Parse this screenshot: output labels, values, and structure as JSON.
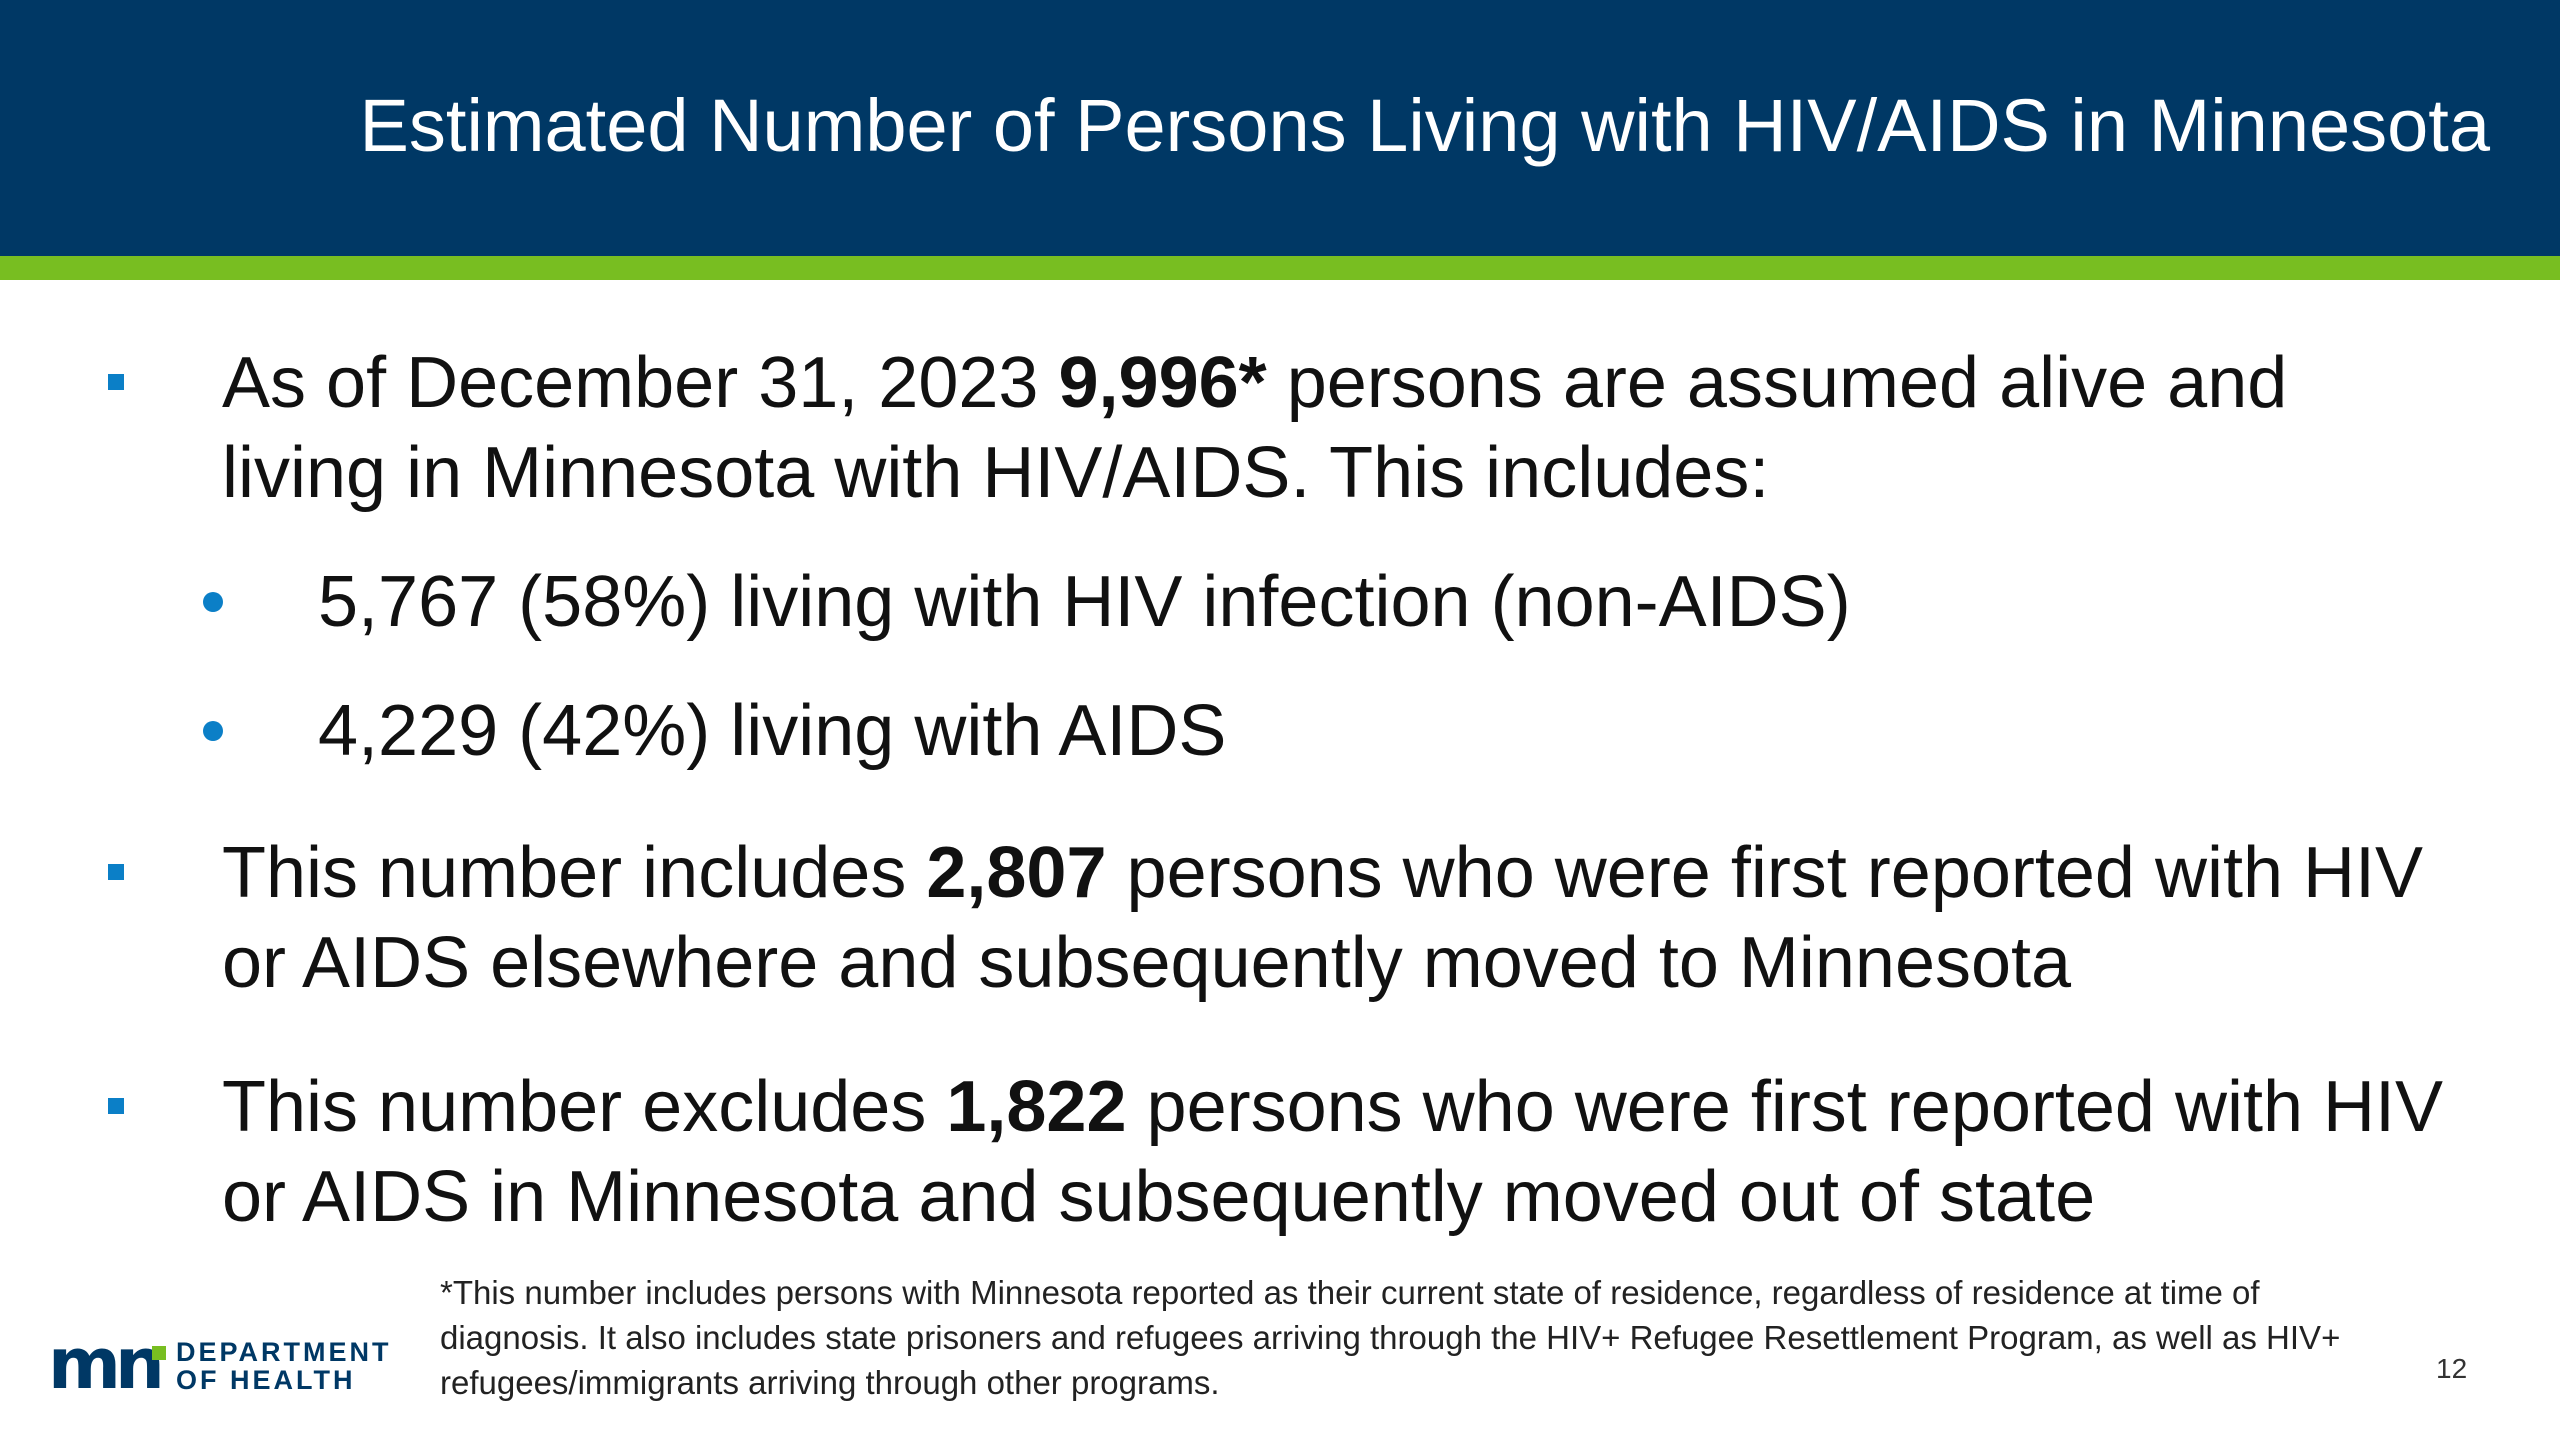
{
  "slide": {
    "title": "Estimated Number of Persons Living with HIV/AIDS in Minnesota",
    "page_number": "12"
  },
  "bullets": {
    "b1": {
      "pre": "As of December 31, 2023 ",
      "bold": "9,996*",
      "post": " persons are assumed alive and living in Minnesota with HIV/AIDS. This includes:",
      "sub": [
        "5,767 (58%) living with HIV infection (non-AIDS)",
        "4,229 (42%) living with AIDS"
      ]
    },
    "b2": {
      "pre": "This number includes ",
      "bold": "2,807",
      "post": " persons who were first reported with HIV or AIDS elsewhere and subsequently moved to Minnesota"
    },
    "b3": {
      "pre": "This number excludes ",
      "bold": "1,822",
      "post": " persons who were first reported with HIV or AIDS in Minnesota and subsequently moved out of state"
    }
  },
  "footnote": "*This number includes persons with Minnesota reported as their current state of residence, regardless of residence at time of diagnosis. It also includes state prisoners and refugees arriving through the HIV+ Refugee Resettlement Program, as well as HIV+ refugees/immigrants arriving through other programs.",
  "logo": {
    "mark": "mn",
    "line1": "DEPARTMENT",
    "line2": "OF HEALTH"
  },
  "colors": {
    "header": "#003865",
    "accent": "#78be21",
    "bullet": "#0b7fc7"
  }
}
